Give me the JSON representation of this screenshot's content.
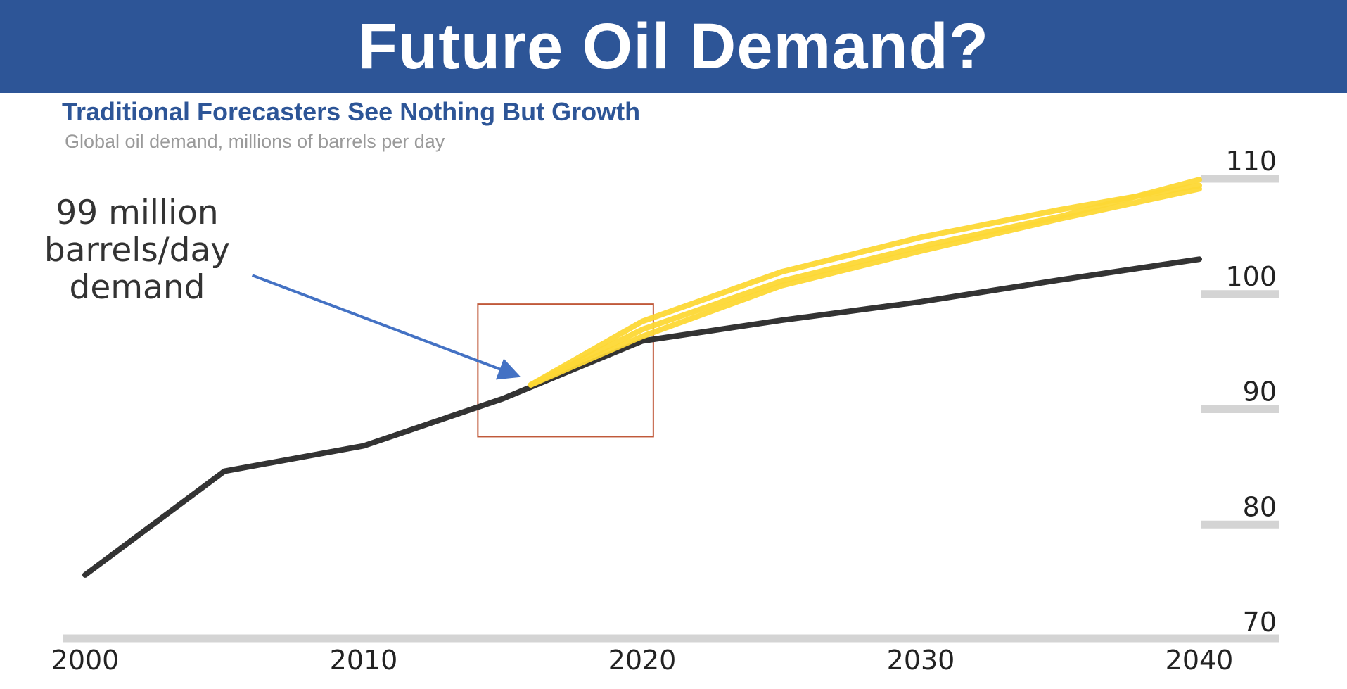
{
  "header": {
    "title": "Future Oil Demand?"
  },
  "colors": {
    "banner": "#2d5597",
    "title": "#2d5597",
    "subtitle": "#9a9a9a",
    "history": "#333333",
    "forecast": "#fdd835",
    "arrow": "#4472c4",
    "highlight_box": "#c0593a",
    "grid": "#d4d4d4"
  },
  "annotation": {
    "lines": [
      "99 million",
      "barrels/day",
      "demand"
    ]
  },
  "chart_data": {
    "type": "line",
    "title": "Traditional Forecasters See Nothing But Growth",
    "subtitle": "Global oil demand, millions of barrels per day",
    "xlabel": "",
    "ylabel": "",
    "xlim": [
      2000,
      2040
    ],
    "ylim": [
      70,
      110
    ],
    "x_ticks": [
      2000,
      2010,
      2020,
      2030,
      2040
    ],
    "y_ticks": [
      70,
      80,
      90,
      100,
      110
    ],
    "y_axis_position": "right",
    "grid": false,
    "legend": "none",
    "series": [
      {
        "type": "history",
        "points": [
          [
            2000,
            75.5
          ],
          [
            2005,
            84.5
          ],
          [
            2010,
            86.7
          ],
          [
            2015,
            90.8
          ],
          [
            2020,
            95.8
          ],
          [
            2025,
            97.6
          ],
          [
            2030,
            99.2
          ],
          [
            2035,
            101.1
          ],
          [
            2040,
            102.9
          ]
        ]
      },
      {
        "type": "forecast",
        "points": [
          [
            2016,
            92.0
          ],
          [
            2020,
            97.5
          ],
          [
            2025,
            101.8
          ],
          [
            2030,
            104.8
          ],
          [
            2035,
            107.2
          ],
          [
            2040,
            109.3
          ]
        ]
      },
      {
        "type": "forecast",
        "points": [
          [
            2016,
            92.0
          ],
          [
            2020,
            96.8
          ],
          [
            2025,
            101.0
          ],
          [
            2030,
            104.0
          ],
          [
            2035,
            106.6
          ],
          [
            2040,
            109.8
          ]
        ]
      },
      {
        "type": "forecast",
        "points": [
          [
            2016,
            92.0
          ],
          [
            2020,
            96.2
          ],
          [
            2025,
            100.6
          ],
          [
            2030,
            103.6
          ],
          [
            2035,
            106.4
          ],
          [
            2040,
            109.0
          ]
        ]
      }
    ],
    "highlight_box": {
      "x": [
        2014.1,
        2020.4
      ],
      "y": [
        87.5,
        99.0
      ]
    },
    "arrow": {
      "from": [
        2006.0,
        101.5
      ],
      "to": [
        2015.5,
        92.8
      ]
    }
  }
}
